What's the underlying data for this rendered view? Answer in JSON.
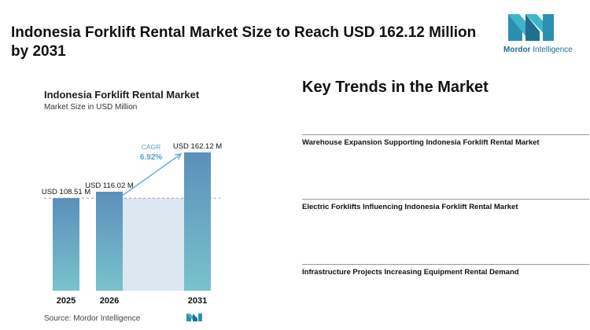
{
  "headline": "Indonesia Forklift Rental Market Size to Reach USD 162.12 Million by 2031",
  "logo": {
    "brand_primary": "Mordor",
    "brand_secondary": "Intelligence",
    "color": "#1a6f8f",
    "accent": "#3fb5c7"
  },
  "chart_data": {
    "type": "bar",
    "title": "Indonesia Forklift Rental Market",
    "subtitle": "Market Size in USD Million",
    "categories": [
      "2025",
      "2026",
      "2031"
    ],
    "values": [
      108.51,
      116.02,
      162.12
    ],
    "data_labels": [
      "USD 108.51 M",
      "USD 116.02 M",
      "USD 162.12 M"
    ],
    "annotation": {
      "label": "CAGR",
      "value": "6.92%"
    },
    "ylim": [
      0,
      175
    ],
    "grid": false,
    "colors": {
      "bar_top": "#5b8fbb",
      "bar_bottom": "#79c3cc",
      "band": "#dce7f1",
      "reference_line": "#9aa3ad",
      "arrow": "#6ab0d8",
      "cagr_text": "#5aa0cc"
    }
  },
  "source": "Source: Mordor Intelligence",
  "trends": {
    "title": "Key Trends in the Market",
    "items": [
      "Warehouse Expansion Supporting Indonesia Forklift Rental Market",
      "Electric Forklifts Influencing Indonesia Forklift Rental Market",
      "Infrastructure Projects Increasing Equipment Rental Demand"
    ]
  }
}
